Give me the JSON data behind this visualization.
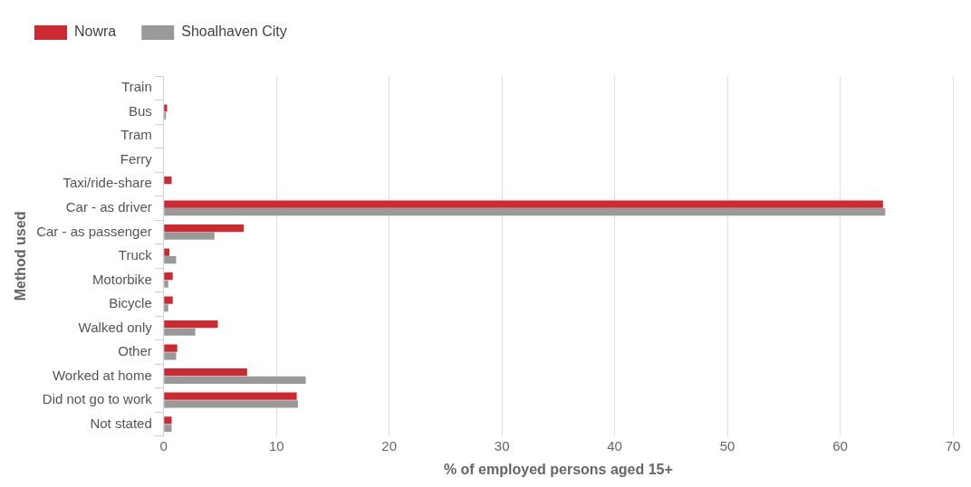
{
  "chart_data": {
    "type": "bar",
    "orientation": "horizontal",
    "xlabel": "% of employed persons aged 15+",
    "ylabel": "Method used",
    "categories": [
      "Train",
      "Bus",
      "Tram",
      "Ferry",
      "Taxi/ride-share",
      "Car - as driver",
      "Car - as passenger",
      "Truck",
      "Motorbike",
      "Bicycle",
      "Walked only",
      "Other",
      "Worked at home",
      "Did not go to work",
      "Not stated"
    ],
    "series": [
      {
        "name": "Nowra",
        "color": "#cc2a30",
        "values": [
          0,
          0.3,
          0,
          0,
          0.7,
          63.8,
          7.1,
          0.5,
          0.8,
          0.8,
          4.8,
          1.2,
          7.4,
          11.8,
          0.7
        ]
      },
      {
        "name": "Shoalhaven City",
        "color": "#999999",
        "values": [
          0,
          0.2,
          0,
          0,
          0,
          64.0,
          4.5,
          1.1,
          0.4,
          0.4,
          2.8,
          1.1,
          12.6,
          11.9,
          0.7
        ]
      }
    ],
    "xlim": [
      0,
      70
    ],
    "xticks": [
      0,
      10,
      20,
      30,
      40,
      50,
      60,
      70
    ],
    "grid": "x",
    "legend": "top left"
  }
}
